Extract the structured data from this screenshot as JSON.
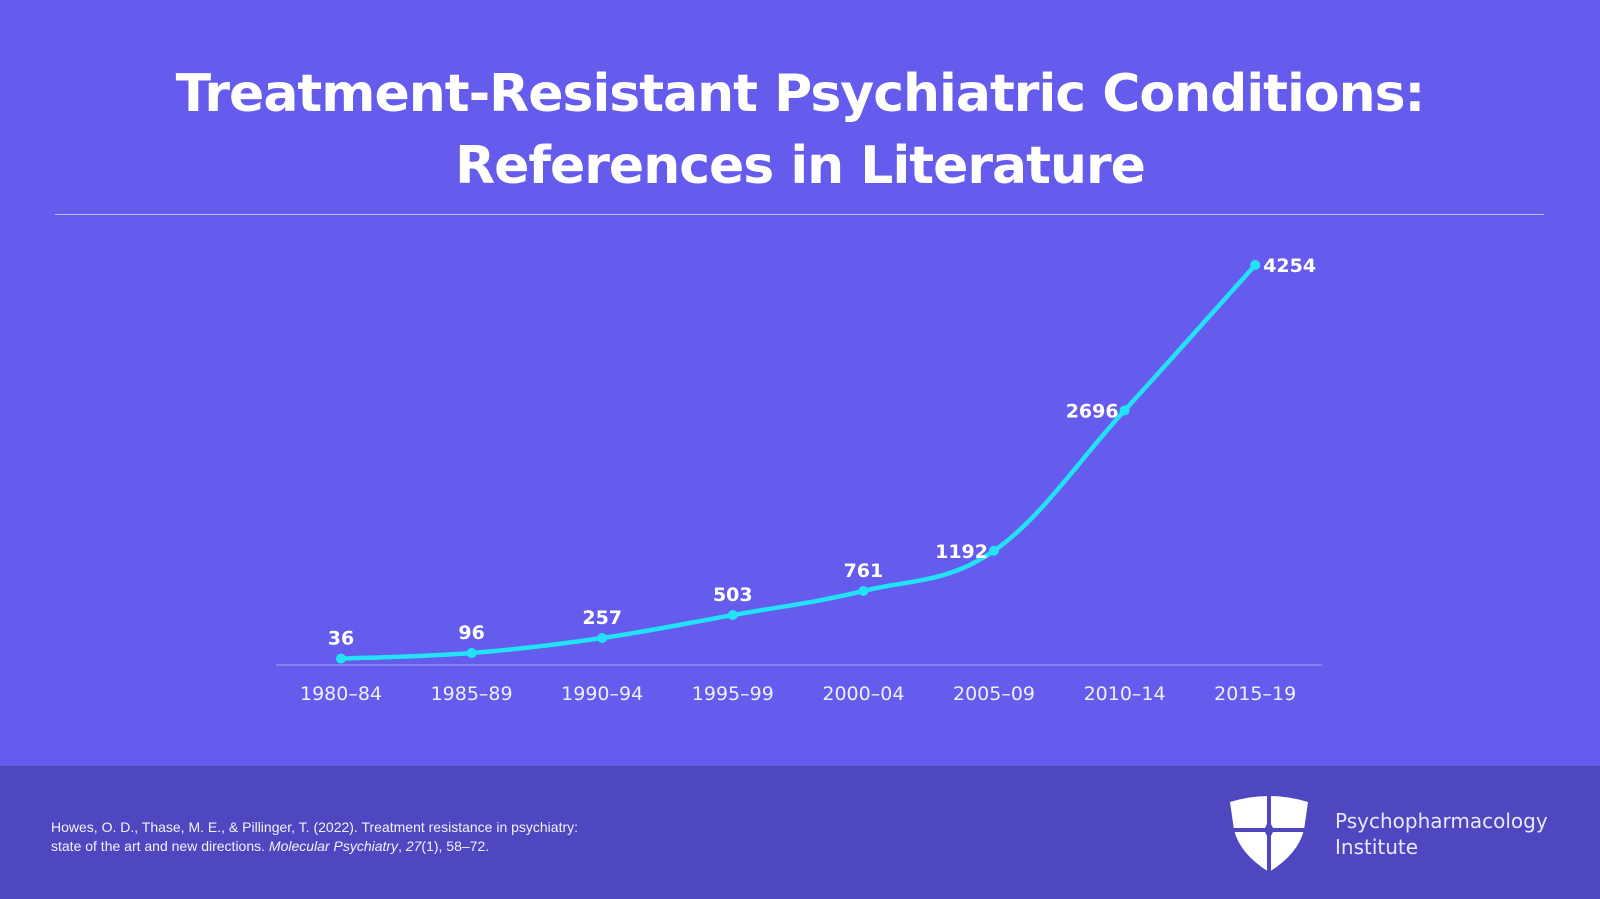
{
  "header": {
    "title_line1": "Treatment-Resistant Psychiatric Conditions:",
    "title_line2": "References in Literature"
  },
  "colors": {
    "background": "#655bec",
    "footer_background": "#4e47bf",
    "line": "#22e3f5",
    "text": "#ffffff",
    "axis": "#a9a4f2"
  },
  "chart_data": {
    "type": "line",
    "title": "Treatment-Resistant Psychiatric Conditions: References in Literature",
    "xlabel": "",
    "ylabel": "",
    "categories": [
      "1980–84",
      "1985–89",
      "1990–94",
      "1995–99",
      "2000–04",
      "2005–09",
      "2010–14",
      "2015–19"
    ],
    "series": [
      {
        "name": "References",
        "values": [
          36,
          96,
          257,
          503,
          761,
          1192,
          2696,
          4254
        ]
      }
    ],
    "ylim": [
      0,
      4254
    ],
    "grid": false,
    "legend": "none",
    "data_labels": true,
    "smooth": true
  },
  "footer": {
    "citation_line1": "Howes, O. D., Thase, M. E., & Pillinger, T. (2022). Treatment resistance in psychiatry:",
    "citation_line2_plain": "state of the art and new directions. ",
    "citation_journal": "Molecular Psychiatry",
    "citation_sep": ", ",
    "citation_volume": "27",
    "citation_rest": "(1), 58–72.",
    "brand_line1": "Psychopharmacology",
    "brand_line2": "Institute",
    "logo_icon": "shield-cross-icon"
  }
}
